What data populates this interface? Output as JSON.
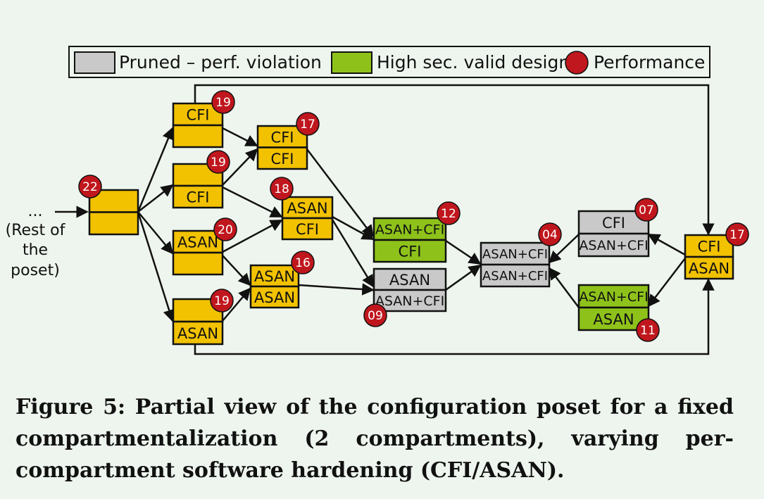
{
  "legend": {
    "pruned": "Pruned – perf. violation",
    "valid": "High sec. valid design",
    "performance": "Performance"
  },
  "colors": {
    "explored": "#f2c200",
    "pruned": "#c9c9c9",
    "valid": "#8ec21b",
    "badge": "#c0161d",
    "line": "#111111"
  },
  "rest_label": [
    "...",
    "(Rest of",
    "the",
    "poset)"
  ],
  "nodes": [
    {
      "id": "n22",
      "top": "",
      "bottom": "",
      "state": "explored",
      "perf": "22"
    },
    {
      "id": "nA",
      "top": "CFI",
      "bottom": "",
      "state": "explored",
      "perf": "19"
    },
    {
      "id": "nB",
      "top": "",
      "bottom": "CFI",
      "state": "explored",
      "perf": "19"
    },
    {
      "id": "nC",
      "top": "ASAN",
      "bottom": "",
      "state": "explored",
      "perf": "20"
    },
    {
      "id": "nD",
      "top": "",
      "bottom": "ASAN",
      "state": "explored",
      "perf": "19"
    },
    {
      "id": "nE",
      "top": "CFI",
      "bottom": "CFI",
      "state": "explored",
      "perf": "17"
    },
    {
      "id": "nF",
      "top": "ASAN",
      "bottom": "CFI",
      "state": "explored",
      "perf": "18"
    },
    {
      "id": "nG",
      "top": "ASAN",
      "bottom": "ASAN",
      "state": "explored",
      "perf": "16"
    },
    {
      "id": "nH",
      "top": "ASAN+CFI",
      "bottom": "CFI",
      "state": "valid",
      "perf": "12"
    },
    {
      "id": "nI",
      "top": "ASAN",
      "bottom": "ASAN+CFI",
      "state": "pruned",
      "perf": "09"
    },
    {
      "id": "nJ",
      "top": "ASAN+CFI",
      "bottom": "ASAN+CFI",
      "state": "pruned",
      "perf": "04"
    },
    {
      "id": "nK",
      "top": "CFI",
      "bottom": "ASAN+CFI",
      "state": "pruned",
      "perf": "07"
    },
    {
      "id": "nL",
      "top": "ASAN+CFI",
      "bottom": "ASAN",
      "state": "valid",
      "perf": "11"
    },
    {
      "id": "nM",
      "top": "CFI",
      "bottom": "ASAN",
      "state": "explored",
      "perf": "17"
    }
  ],
  "caption": "Figure 5: Partial view of the configuration poset for a fixed compartmentalization (2 compartments), varying per-compartment software hardening (CFI/ASAN)."
}
